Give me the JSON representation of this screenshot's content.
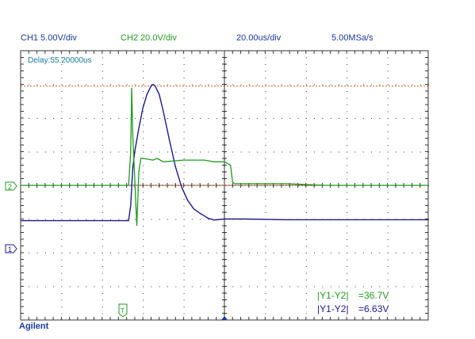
{
  "header": {
    "ch1_scale": "CH1 5.00V/div",
    "ch2_scale": "CH2 20.0V/div",
    "timebase": "20.00us/div",
    "sample_rate": "5.00MSa/s"
  },
  "delay_text": "Delay:55.20000us",
  "brand": "Agilent",
  "measurements": {
    "ch2_label": "|Y1-Y2|",
    "ch2_value": "=36.7V",
    "ch1_label": "|Y1-Y2|",
    "ch1_value": "=6.63V"
  },
  "markers": {
    "ch1": "1",
    "ch2": "2",
    "trigger": "T"
  },
  "colors": {
    "ch1": "#1a1a8c",
    "ch2": "#1f9a1f",
    "cursor": "#e05a1a",
    "text_blue": "#1a3a9a",
    "grid": "#333333"
  },
  "chart_data": {
    "type": "line",
    "xlabel": "",
    "ylabel": "",
    "xlim": [
      -70,
      130
    ],
    "ylim": [
      -4,
      4
    ],
    "x_unit": "us",
    "y_unit": "div",
    "grid": "dotted 10x8 divisions",
    "series": [
      {
        "name": "CH1",
        "points": [
          [
            -70,
            -1.05
          ],
          [
            -17,
            -1.05
          ],
          [
            -16,
            -0.6
          ],
          [
            -15,
            0.5
          ],
          [
            -14,
            1.0
          ],
          [
            -12,
            1.7
          ],
          [
            -10,
            2.3
          ],
          [
            -8,
            2.7
          ],
          [
            -6,
            2.95
          ],
          [
            -5,
            3.0
          ],
          [
            -4,
            2.95
          ],
          [
            -2,
            2.7
          ],
          [
            0,
            2.2
          ],
          [
            3,
            1.35
          ],
          [
            6,
            0.55
          ],
          [
            9,
            -0.05
          ],
          [
            12,
            -0.45
          ],
          [
            15,
            -0.7
          ],
          [
            18,
            -0.83
          ],
          [
            20,
            -0.9
          ],
          [
            22,
            -0.98
          ],
          [
            25,
            -1.03
          ],
          [
            30,
            -1.0
          ],
          [
            40,
            -1.0
          ],
          [
            60,
            -1.02
          ],
          [
            80,
            -1.02
          ],
          [
            110,
            -1.02
          ],
          [
            130,
            -1.02
          ]
        ]
      },
      {
        "name": "CH2",
        "points": [
          [
            -70,
            0.0
          ],
          [
            -17,
            0.0
          ],
          [
            -16,
            1.0
          ],
          [
            -15.5,
            2.9
          ],
          [
            -15,
            1.5
          ],
          [
            -14,
            0.2
          ],
          [
            -13,
            -1.2
          ],
          [
            -12,
            0.4
          ],
          [
            -11,
            0.8
          ],
          [
            -10,
            0.8
          ],
          [
            -5,
            0.75
          ],
          [
            -3,
            0.8
          ],
          [
            0,
            0.7
          ],
          [
            10,
            0.75
          ],
          [
            20,
            0.75
          ],
          [
            25,
            0.7
          ],
          [
            30,
            0.7
          ],
          [
            33,
            0.6
          ],
          [
            34,
            0.1
          ],
          [
            35,
            0.05
          ],
          [
            40,
            0.05
          ],
          [
            60,
            0.05
          ],
          [
            80,
            0.0
          ],
          [
            100,
            0.0
          ],
          [
            130,
            0.0
          ]
        ]
      }
    ],
    "cursors_y": [
      2.95,
      0.0
    ]
  }
}
